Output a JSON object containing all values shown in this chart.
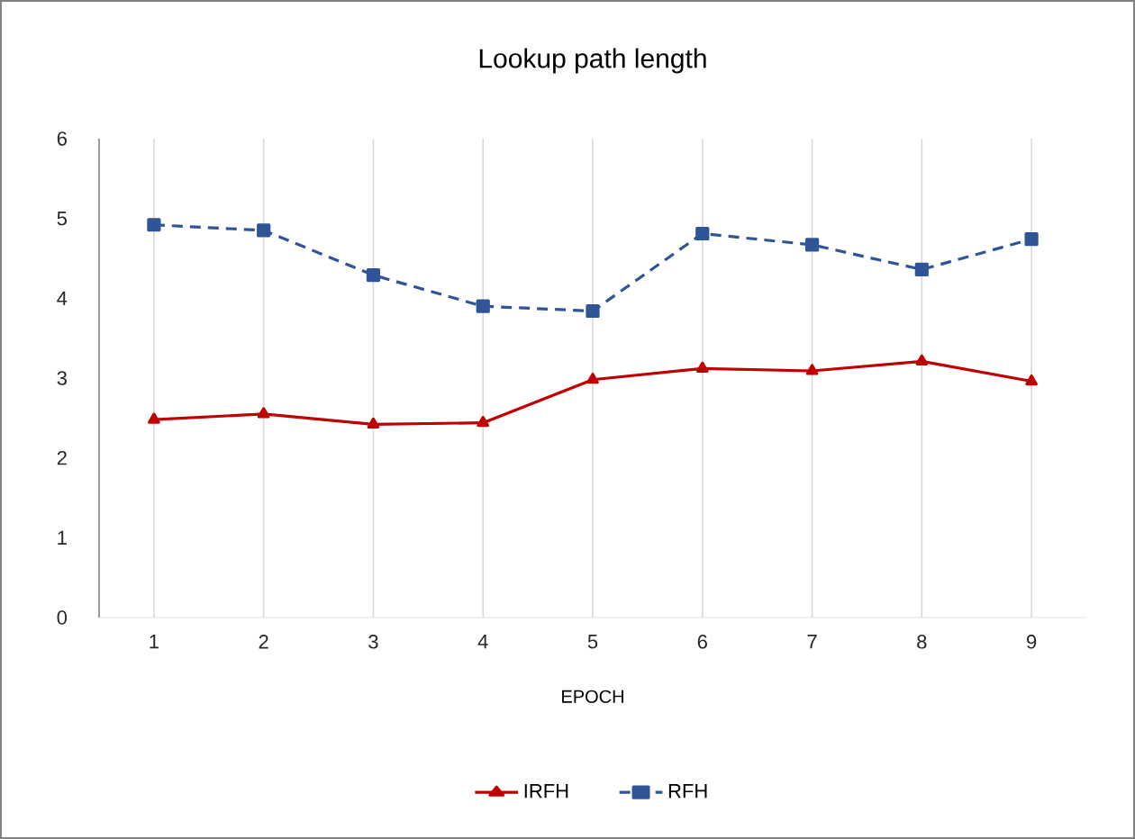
{
  "chart_data": {
    "type": "line",
    "title": "Lookup path length",
    "xlabel": "EPOCH",
    "categories": [
      "1",
      "2",
      "3",
      "4",
      "5",
      "6",
      "7",
      "8",
      "9"
    ],
    "series": [
      {
        "name": "IRFH",
        "color": "#c00000",
        "marker": "triangle",
        "line_style": "solid",
        "values": [
          2.48,
          2.55,
          2.42,
          2.44,
          2.98,
          3.12,
          3.09,
          3.21,
          2.96
        ]
      },
      {
        "name": "RFH",
        "color": "#2f5597",
        "marker": "square",
        "line_style": "dashed",
        "values": [
          4.92,
          4.85,
          4.29,
          3.9,
          3.84,
          4.81,
          4.67,
          4.36,
          4.74
        ]
      }
    ],
    "ylim": [
      0,
      6
    ],
    "yticks": [
      0,
      1,
      2,
      3,
      4,
      5,
      6
    ],
    "grid": "x",
    "legend": "bottom"
  }
}
